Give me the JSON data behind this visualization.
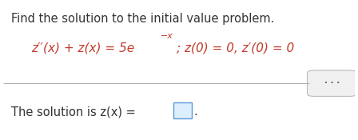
{
  "title": "Find the solution to the initial value problem.",
  "bg_color": "#ffffff",
  "title_color": "#333333",
  "eq_color": "#c0392b",
  "solution_color": "#333333",
  "separator_color": "#b0b0b0",
  "dots_color": "#666666",
  "figsize": [
    4.48,
    1.75
  ],
  "dpi": 100,
  "title_fontsize": 10.5,
  "eq_fontsize": 11.0,
  "sol_fontsize": 10.5
}
